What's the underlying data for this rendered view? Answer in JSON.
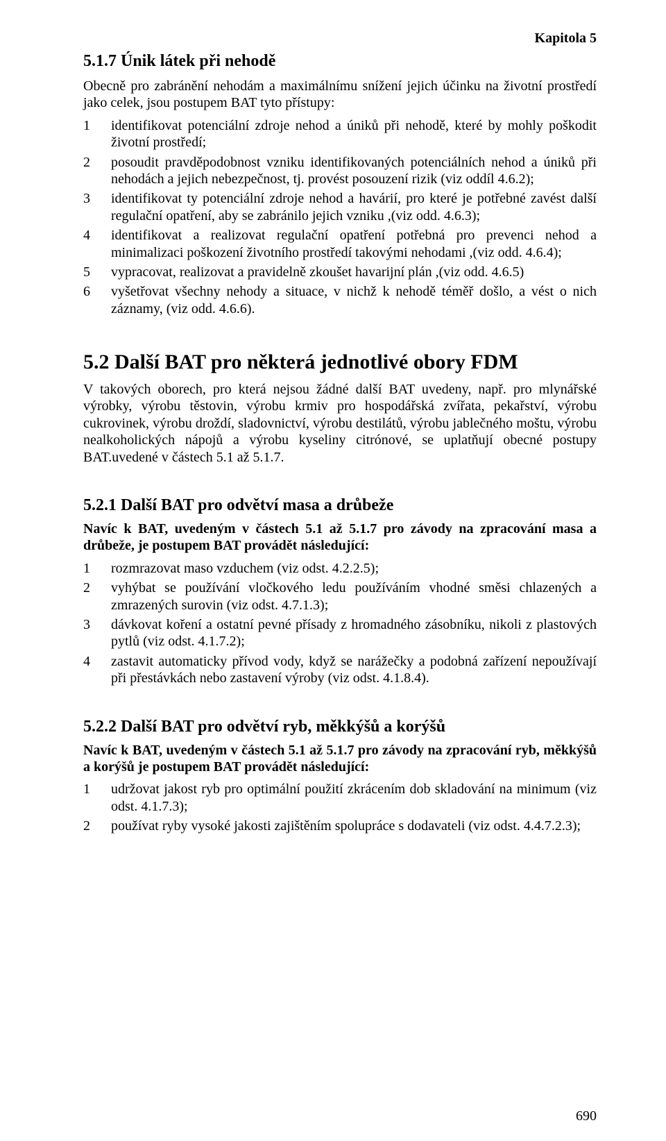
{
  "header": {
    "chapter": "Kapitola 5"
  },
  "s517": {
    "heading": "5.1.7   Únik látek při nehodě",
    "intro": "Obecně pro zabránění nehodám a maximálnímu snížení jejich účinku na životní prostředí jako celek, jsou postupem BAT tyto přístupy:",
    "items": [
      {
        "n": "1",
        "t": "identifikovat potenciální zdroje nehod a úniků při nehodě, které by mohly poškodit životní prostředí;"
      },
      {
        "n": "2",
        "t": "posoudit pravděpodobnost vzniku identifikovaných potenciálních nehod a úniků při nehodách a jejich nebezpečnost, tj. provést posouzení rizik (viz oddíl 4.6.2);"
      },
      {
        "n": "3",
        "t": "identifikovat ty potenciální zdroje nehod a havárií, pro které je potřebné zavést další regulační opatření, aby se zabránilo jejich vzniku ,(viz odd. 4.6.3);"
      },
      {
        "n": "4",
        "t": "identifikovat a realizovat regulační opatření potřebná pro prevenci nehod a minimalizaci poškození životního prostředí takovými nehodami ,(viz odd. 4.6.4);"
      },
      {
        "n": "5",
        "t": "vypracovat, realizovat a pravidelně zkoušet havarijní plán ,(viz odd. 4.6.5)"
      },
      {
        "n": "6",
        "t": "vyšetřovat všechny nehody a situace, v nichž k nehodě téměř došlo, a vést o nich záznamy, (viz odd. 4.6.6)."
      }
    ]
  },
  "s52": {
    "heading": "5.2    Další BAT pro některá jednotlivé obory FDM",
    "para": "V takových oborech, pro která nejsou žádné další BAT uvedeny, např. pro mlynářské výrobky, výrobu těstovin, výrobu krmiv pro hospodářská zvířata, pekařství, výrobu cukrovinek, výrobu droždí, sladovnictví, výrobu destilátů, výrobu jablečného moštu, výrobu nealkoholických nápojů a výrobu kyseliny citrónové, se uplatňují obecné postupy BAT.uvedené v částech 5.1 až 5.1.7."
  },
  "s521": {
    "heading": "5.2.1   Další BAT pro odvětví masa a drůbeže",
    "lead": "Navíc k BAT, uvedeným v částech 5.1 až 5.1.7 pro závody na zpracování masa a drůbeže, je postupem BAT provádět následující:",
    "items": [
      {
        "n": "1",
        "t": "rozmrazovat maso vzduchem (viz odst. 4.2.2.5);"
      },
      {
        "n": "2",
        "t": "vyhýbat se používání vločkového ledu používáním vhodné směsi chlazených a zmrazených surovin (viz odst. 4.7.1.3);"
      },
      {
        "n": "3",
        "t": "dávkovat koření a ostatní pevné přísady z hromadného zásobníku, nikoli z plastových pytlů (viz odst. 4.1.7.2);"
      },
      {
        "n": "4",
        "t": "zastavit automaticky přívod vody, když se narážečky a podobná zařízení nepoužívají při přestávkách nebo zastavení výroby (viz odst. 4.1.8.4)."
      }
    ]
  },
  "s522": {
    "heading": "5.2.2   Další BAT pro odvětví ryb, měkkýšů a korýšů",
    "lead": "Navíc k BAT, uvedeným v částech 5.1 až 5.1.7 pro závody na zpracování ryb, měkkýšů a korýšů je postupem BAT provádět následující:",
    "items": [
      {
        "n": "1",
        "t": "udržovat jakost ryb pro optimální použití zkrácením dob skladování na minimum (viz odst. 4.1.7.3);"
      },
      {
        "n": "2",
        "t": "používat ryby vysoké jakosti zajištěním spolupráce s dodavateli (viz odst. 4.4.7.2.3);"
      }
    ]
  },
  "footer": {
    "page": "690"
  }
}
